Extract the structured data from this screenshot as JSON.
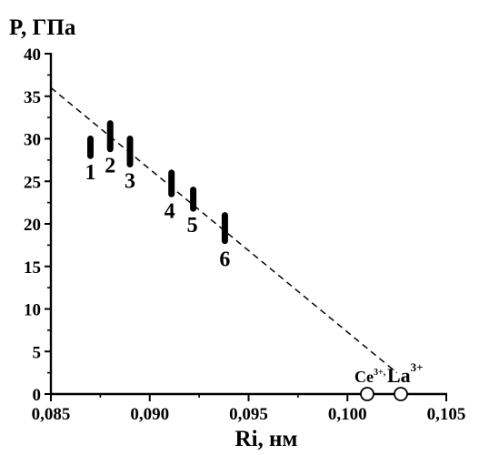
{
  "chart_data": {
    "type": "scatter",
    "title": "",
    "ylabel": "P, ГПа",
    "xlabel": "Ri, нм",
    "xlim": [
      0.085,
      0.105
    ],
    "ylim": [
      0,
      40
    ],
    "grid": false,
    "x_ticks": [
      0.085,
      0.09,
      0.095,
      0.1,
      0.105
    ],
    "x_tick_labels": [
      "0,085",
      "0,090",
      "0,095",
      "0,100",
      "0,105"
    ],
    "y_ticks": [
      0,
      5,
      10,
      15,
      20,
      25,
      30,
      35,
      40
    ],
    "y_tick_labels": [
      "0",
      "5",
      "10",
      "15",
      "20",
      "25",
      "30",
      "35",
      "40"
    ],
    "ranges": [
      {
        "label": "1",
        "x": 0.087,
        "y_low": 28.0,
        "y_high": 30.0
      },
      {
        "label": "2",
        "x": 0.088,
        "y_low": 28.8,
        "y_high": 31.8
      },
      {
        "label": "3",
        "x": 0.089,
        "y_low": 27.0,
        "y_high": 30.0
      },
      {
        "label": "4",
        "x": 0.0911,
        "y_low": 23.5,
        "y_high": 26.0
      },
      {
        "label": "5",
        "x": 0.0922,
        "y_low": 21.8,
        "y_high": 24.0
      },
      {
        "label": "6",
        "x": 0.0938,
        "y_low": 18.0,
        "y_high": 21.0
      }
    ],
    "fit_line": {
      "x": [
        0.085,
        0.1025
      ],
      "y": [
        36.0,
        2.5
      ]
    },
    "open_points": [
      {
        "label": "Ce",
        "superscript": "3+,",
        "x": 0.101,
        "y": 0
      },
      {
        "label": "La",
        "superscript": "3+",
        "x": 0.1027,
        "y": 0
      }
    ],
    "colors": {
      "axis": "#000000",
      "marker": "#000000",
      "open_fill": "#ffffff"
    }
  }
}
